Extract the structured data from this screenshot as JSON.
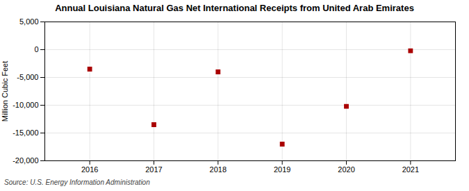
{
  "chart_data": {
    "type": "scatter",
    "title": "Annual Louisiana Natural Gas Net International Receipts from United Arab Emirates",
    "ylabel": "Million Cubic Feet",
    "source": "Source: U.S. Energy Information Administration",
    "x": [
      2016,
      2017,
      2018,
      2019,
      2020,
      2021
    ],
    "values": [
      -3500,
      -13500,
      -4000,
      -17000,
      -10200,
      -200
    ],
    "color": "#aa0000",
    "marker": "square",
    "xlim": [
      2015.3,
      2021.7
    ],
    "xticks": [
      2016,
      2017,
      2018,
      2019,
      2020,
      2021
    ],
    "ylim": [
      -20000,
      5000
    ],
    "yticks": [
      {
        "value": -20000,
        "label": "-20,000"
      },
      {
        "value": -15000,
        "label": "-15,000"
      },
      {
        "value": -10000,
        "label": "-10,000"
      },
      {
        "value": -5000,
        "label": "-5,000"
      },
      0,
      {
        "value": 5000,
        "label": "5,000"
      }
    ],
    "grid": true
  }
}
